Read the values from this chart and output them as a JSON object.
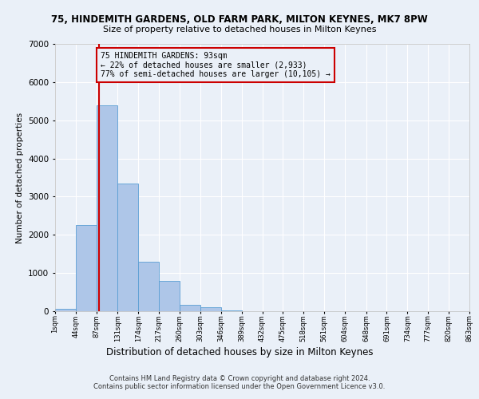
{
  "title": "75, HINDEMITH GARDENS, OLD FARM PARK, MILTON KEYNES, MK7 8PW",
  "subtitle": "Size of property relative to detached houses in Milton Keynes",
  "xlabel": "Distribution of detached houses by size in Milton Keynes",
  "ylabel": "Number of detached properties",
  "footer_line1": "Contains HM Land Registry data © Crown copyright and database right 2024.",
  "footer_line2": "Contains public sector information licensed under the Open Government Licence v3.0.",
  "bar_edges": [
    1,
    44,
    87,
    131,
    174,
    217,
    260,
    303,
    346,
    389,
    432,
    475,
    518,
    561,
    604,
    648,
    691,
    734,
    777,
    820,
    863
  ],
  "bar_heights": [
    70,
    2250,
    5400,
    3350,
    1300,
    800,
    175,
    100,
    30,
    5,
    2,
    1,
    1,
    0,
    0,
    0,
    0,
    0,
    0,
    0
  ],
  "bar_color": "#aec6e8",
  "bar_edgecolor": "#5a9fd4",
  "background_color": "#eaf0f8",
  "grid_color": "#ffffff",
  "property_size": 93,
  "vline_color": "#cc0000",
  "annotation_text": "75 HINDEMITH GARDENS: 93sqm\n← 22% of detached houses are smaller (2,933)\n77% of semi-detached houses are larger (10,105) →",
  "annotation_box_color": "#cc0000",
  "ylim": [
    0,
    7000
  ],
  "yticks": [
    0,
    1000,
    2000,
    3000,
    4000,
    5000,
    6000,
    7000
  ],
  "tick_labels": [
    "1sqm",
    "44sqm",
    "87sqm",
    "131sqm",
    "174sqm",
    "217sqm",
    "260sqm",
    "303sqm",
    "346sqm",
    "389sqm",
    "432sqm",
    "475sqm",
    "518sqm",
    "561sqm",
    "604sqm",
    "648sqm",
    "691sqm",
    "734sqm",
    "777sqm",
    "820sqm",
    "863sqm"
  ]
}
